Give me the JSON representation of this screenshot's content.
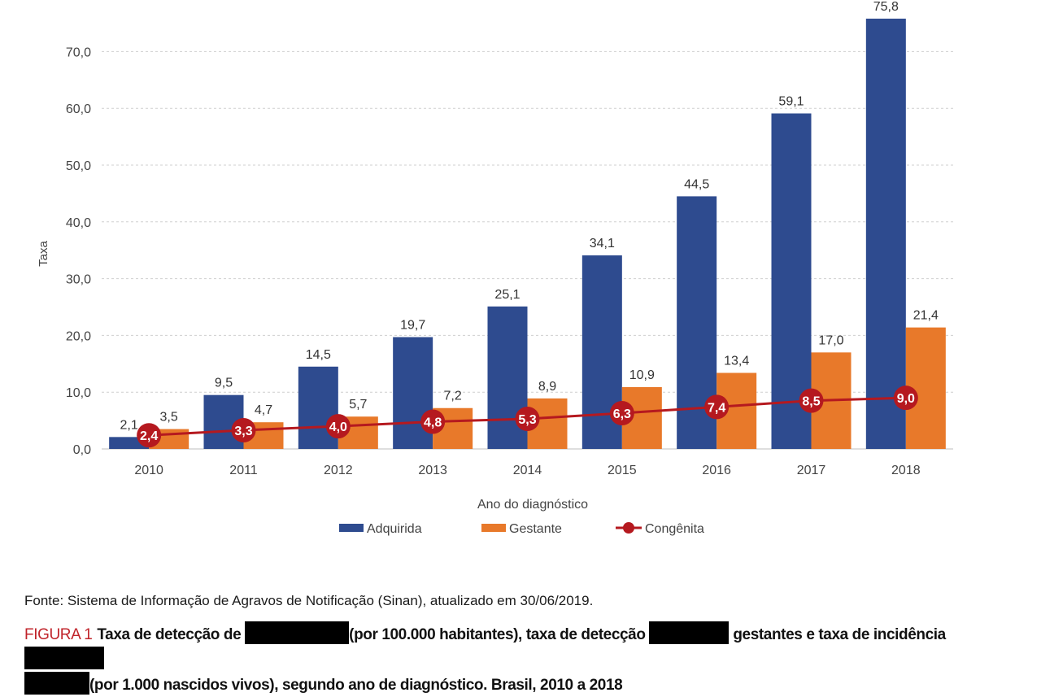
{
  "chart_data": {
    "type": "bar",
    "categories": [
      "2010",
      "2011",
      "2012",
      "2013",
      "2014",
      "2015",
      "2016",
      "2017",
      "2018"
    ],
    "series": [
      {
        "name": "Adquirida",
        "kind": "bar",
        "color": "#2e4b8f",
        "values": [
          2.1,
          9.5,
          14.5,
          19.7,
          25.1,
          34.1,
          44.5,
          59.1,
          75.8
        ],
        "labels": [
          "2,1",
          "9,5",
          "14,5",
          "19,7",
          "25,1",
          "34,1",
          "44,5",
          "59,1",
          "75,8"
        ]
      },
      {
        "name": "Gestante",
        "kind": "bar",
        "color": "#e8792a",
        "values": [
          3.5,
          4.7,
          5.7,
          7.2,
          8.9,
          10.9,
          13.4,
          17.0,
          21.4
        ],
        "labels": [
          "3,5",
          "4,7",
          "5,7",
          "7,2",
          "8,9",
          "10,9",
          "13,4",
          "17,0",
          "21,4"
        ]
      },
      {
        "name": "Congênita",
        "kind": "line",
        "color": "#b5191f",
        "values": [
          2.4,
          3.3,
          4.0,
          4.8,
          5.3,
          6.3,
          7.4,
          8.5,
          9.0
        ],
        "labels": [
          "2,4",
          "3,3",
          "4,0",
          "4,8",
          "5,3",
          "6,3",
          "7,4",
          "8,5",
          "9,0"
        ]
      }
    ],
    "yticks": [
      0,
      10,
      20,
      30,
      40,
      50,
      60,
      70
    ],
    "ytick_labels": [
      "0,0",
      "10,0",
      "20,0",
      "30,0",
      "40,0",
      "50,0",
      "60,0",
      "70,0"
    ],
    "ylim": [
      0,
      78
    ],
    "xlabel": "Ano do diagnóstico",
    "ylabel": "Taxa",
    "grid": true,
    "legend_position": "bottom"
  },
  "source_text": "Fonte: Sistema de Informação de Agravos de Notificação (Sinan), atualizado em 30/06/2019.",
  "caption": {
    "label": "FIGURA 1",
    "part1": "Taxa de detecção de",
    "part2": "(por 100.000 habitantes), taxa de detecção",
    "part3": "gestantes e taxa de incidência",
    "part4": "(por 1.000 nascidos vivos), segundo ano de diagnóstico. Brasil, 2010 a 2018"
  }
}
